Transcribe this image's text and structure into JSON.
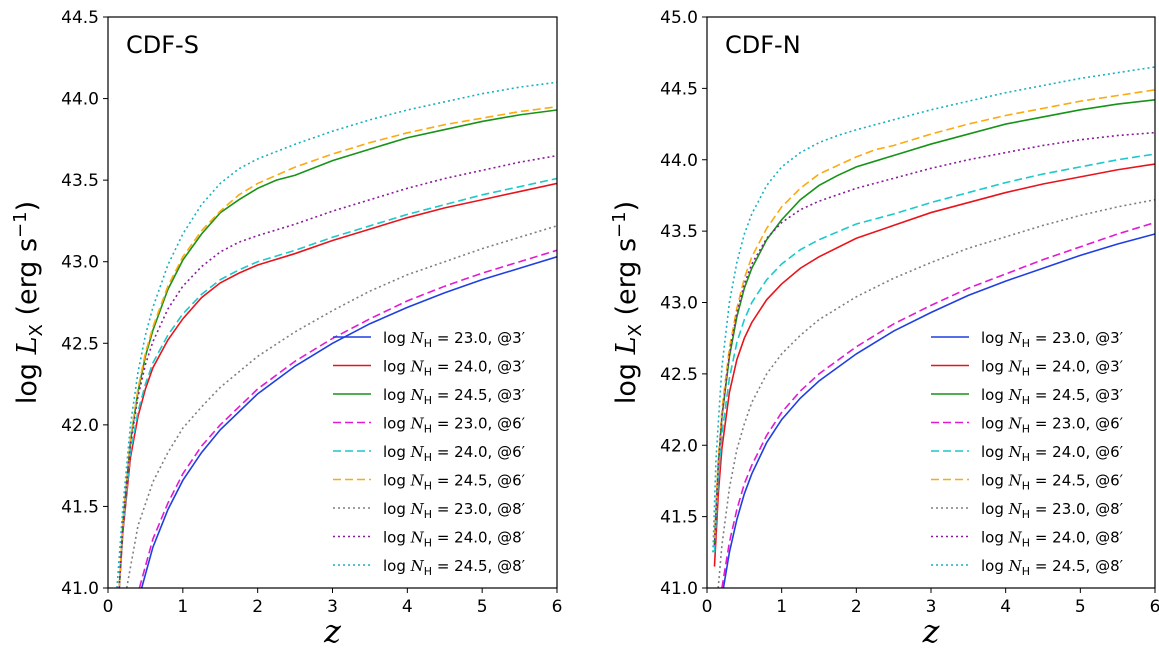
{
  "chart_data": [
    {
      "type": "line",
      "title": "CDF-S",
      "xlabel": "z",
      "ylabel": "log L_X (erg s^-1)",
      "xlim": [
        0,
        6
      ],
      "ylim": [
        41.0,
        44.5
      ],
      "xticks": [
        "0",
        "1",
        "2",
        "3",
        "4",
        "5",
        "6"
      ],
      "yticks": [
        "41.0",
        "41.5",
        "42.0",
        "42.5",
        "43.0",
        "43.5",
        "44.0",
        "44.5"
      ],
      "grid": false,
      "legend_position": "lower-right",
      "series": [
        {
          "name": "log N_H = 23.0, @3′",
          "color": "#1f3fe0",
          "style": "solid",
          "x": [
            0.45,
            0.6,
            0.8,
            1.0,
            1.25,
            1.5,
            2.0,
            2.5,
            3.0,
            3.5,
            4.0,
            4.5,
            5.0,
            5.5,
            6.0
          ],
          "y": [
            41.0,
            41.25,
            41.48,
            41.66,
            41.83,
            41.97,
            42.19,
            42.36,
            42.5,
            42.62,
            42.72,
            42.81,
            42.89,
            42.96,
            43.03
          ]
        },
        {
          "name": "log N_H = 24.0, @3′",
          "color": "#e8141c",
          "style": "solid",
          "x": [
            0.15,
            0.2,
            0.3,
            0.4,
            0.5,
            0.6,
            0.8,
            1.0,
            1.25,
            1.5,
            1.75,
            2.0,
            2.5,
            3.0,
            3.5,
            4.0,
            4.5,
            5.0,
            5.5,
            6.0
          ],
          "y": [
            41.0,
            41.35,
            41.8,
            42.05,
            42.22,
            42.35,
            42.52,
            42.65,
            42.78,
            42.87,
            42.93,
            42.98,
            43.05,
            43.13,
            43.2,
            43.27,
            43.33,
            43.38,
            43.43,
            43.48
          ]
        },
        {
          "name": "log N_H = 24.5, @3′",
          "color": "#179317",
          "style": "solid",
          "x": [
            0.15,
            0.2,
            0.3,
            0.4,
            0.5,
            0.6,
            0.8,
            1.0,
            1.25,
            1.5,
            1.75,
            2.0,
            2.25,
            2.5,
            3.0,
            3.5,
            4.0,
            4.5,
            5.0,
            5.5,
            6.0
          ],
          "y": [
            41.0,
            41.4,
            41.9,
            42.2,
            42.42,
            42.58,
            42.83,
            43.01,
            43.17,
            43.3,
            43.38,
            43.45,
            43.5,
            43.53,
            43.62,
            43.69,
            43.76,
            43.81,
            43.86,
            43.9,
            43.93
          ]
        },
        {
          "name": "log N_H = 23.0, @6′",
          "color": "#e21ad4",
          "style": "dashed",
          "x": [
            0.42,
            0.6,
            0.8,
            1.0,
            1.25,
            1.5,
            2.0,
            2.5,
            3.0,
            3.5,
            4.0,
            4.5,
            5.0,
            5.5,
            6.0
          ],
          "y": [
            41.0,
            41.3,
            41.52,
            41.7,
            41.87,
            42.0,
            42.22,
            42.39,
            42.53,
            42.65,
            42.76,
            42.85,
            42.93,
            43.0,
            43.07
          ]
        },
        {
          "name": "log N_H = 24.0, @6′",
          "color": "#1cc9cc",
          "style": "dashed",
          "x": [
            0.15,
            0.2,
            0.3,
            0.4,
            0.5,
            0.6,
            0.8,
            1.0,
            1.25,
            1.5,
            1.75,
            2.0,
            2.5,
            3.0,
            3.5,
            4.0,
            4.5,
            5.0,
            5.5,
            6.0
          ],
          "y": [
            41.0,
            41.37,
            41.83,
            42.08,
            42.25,
            42.38,
            42.55,
            42.68,
            42.8,
            42.89,
            42.95,
            43.0,
            43.07,
            43.15,
            43.22,
            43.29,
            43.35,
            43.41,
            43.46,
            43.51
          ]
        },
        {
          "name": "log N_H = 24.5, @6′",
          "color": "#fcaa0f",
          "style": "dashed",
          "x": [
            0.15,
            0.2,
            0.3,
            0.4,
            0.5,
            0.6,
            0.8,
            1.0,
            1.25,
            1.5,
            1.75,
            2.0,
            2.25,
            2.5,
            3.0,
            3.5,
            4.0,
            4.5,
            5.0,
            5.5,
            6.0
          ],
          "y": [
            41.0,
            41.42,
            41.92,
            42.22,
            42.44,
            42.6,
            42.85,
            43.03,
            43.19,
            43.31,
            43.41,
            43.48,
            43.53,
            43.58,
            43.66,
            43.73,
            43.79,
            43.84,
            43.88,
            43.92,
            43.95
          ]
        },
        {
          "name": "log N_H = 23.0, @8′",
          "color": "#7f7f7f",
          "style": "dotted",
          "x": [
            0.25,
            0.4,
            0.6,
            0.8,
            1.0,
            1.25,
            1.5,
            2.0,
            2.5,
            3.0,
            3.5,
            4.0,
            4.5,
            5.0,
            5.5,
            6.0
          ],
          "y": [
            41.0,
            41.38,
            41.65,
            41.83,
            41.98,
            42.11,
            42.23,
            42.42,
            42.57,
            42.7,
            42.82,
            42.92,
            43.0,
            43.08,
            43.15,
            43.22
          ]
        },
        {
          "name": "log N_H = 24.0, @8′",
          "color": "#8b1a9c",
          "style": "dotted",
          "x": [
            0.15,
            0.2,
            0.3,
            0.4,
            0.5,
            0.6,
            0.8,
            1.0,
            1.25,
            1.5,
            1.75,
            2.0,
            2.5,
            3.0,
            3.5,
            4.0,
            4.5,
            5.0,
            5.5,
            6.0
          ],
          "y": [
            41.0,
            41.4,
            41.88,
            42.17,
            42.37,
            42.51,
            42.71,
            42.85,
            42.97,
            43.06,
            43.12,
            43.16,
            43.23,
            43.31,
            43.38,
            43.45,
            43.51,
            43.56,
            43.61,
            43.65
          ]
        },
        {
          "name": "log N_H = 24.5, @8′",
          "color": "#17b1c1",
          "style": "dotted",
          "x": [
            0.12,
            0.2,
            0.3,
            0.4,
            0.5,
            0.6,
            0.8,
            1.0,
            1.25,
            1.5,
            1.75,
            2.0,
            2.5,
            3.0,
            3.5,
            4.0,
            4.5,
            5.0,
            5.5,
            6.0
          ],
          "y": [
            41.0,
            41.5,
            42.0,
            42.32,
            42.55,
            42.72,
            42.98,
            43.17,
            43.35,
            43.48,
            43.57,
            43.63,
            43.72,
            43.8,
            43.87,
            43.93,
            43.98,
            44.03,
            44.07,
            44.1
          ]
        }
      ]
    },
    {
      "type": "line",
      "title": "CDF-N",
      "xlabel": "z",
      "ylabel": "log L_X (erg s^-1)",
      "xlim": [
        0,
        6
      ],
      "ylim": [
        41.0,
        45.0
      ],
      "xticks": [
        "0",
        "1",
        "2",
        "3",
        "4",
        "5",
        "6"
      ],
      "yticks": [
        "41.0",
        "41.5",
        "42.0",
        "42.5",
        "43.0",
        "43.5",
        "44.0",
        "44.5",
        "45.0"
      ],
      "grid": false,
      "legend_position": "lower-right",
      "series": [
        {
          "name": "log N_H = 23.0, @3′",
          "color": "#1f3fe0",
          "style": "solid",
          "x": [
            0.22,
            0.3,
            0.4,
            0.5,
            0.6,
            0.8,
            1.0,
            1.25,
            1.5,
            2.0,
            2.5,
            3.0,
            3.5,
            4.0,
            4.5,
            5.0,
            5.5,
            6.0
          ],
          "y": [
            41.0,
            41.25,
            41.48,
            41.66,
            41.8,
            42.02,
            42.18,
            42.33,
            42.45,
            42.64,
            42.8,
            42.93,
            43.05,
            43.15,
            43.24,
            43.33,
            43.41,
            43.48
          ]
        },
        {
          "name": "log N_H = 24.0, @3′",
          "color": "#e8141c",
          "style": "solid",
          "x": [
            0.1,
            0.15,
            0.2,
            0.3,
            0.4,
            0.5,
            0.6,
            0.8,
            1.0,
            1.25,
            1.5,
            2.0,
            2.5,
            3.0,
            3.5,
            4.0,
            4.5,
            5.0,
            5.5,
            6.0
          ],
          "y": [
            41.15,
            41.65,
            41.98,
            42.37,
            42.6,
            42.75,
            42.86,
            43.02,
            43.13,
            43.24,
            43.32,
            43.45,
            43.54,
            43.63,
            43.7,
            43.77,
            43.83,
            43.88,
            43.93,
            43.97
          ]
        },
        {
          "name": "log N_H = 24.5, @3′",
          "color": "#179317",
          "style": "solid",
          "x": [
            0.1,
            0.15,
            0.2,
            0.3,
            0.4,
            0.5,
            0.6,
            0.8,
            1.0,
            1.25,
            1.5,
            1.75,
            2.0,
            2.25,
            2.5,
            3.0,
            3.5,
            4.0,
            4.5,
            5.0,
            5.5,
            6.0
          ],
          "y": [
            41.3,
            41.85,
            42.2,
            42.62,
            42.9,
            43.1,
            43.24,
            43.44,
            43.58,
            43.72,
            43.82,
            43.89,
            43.95,
            43.99,
            44.03,
            44.11,
            44.18,
            44.25,
            44.3,
            44.35,
            44.39,
            44.42
          ]
        },
        {
          "name": "log N_H = 23.0, @6′",
          "color": "#e21ad4",
          "style": "dashed",
          "x": [
            0.2,
            0.3,
            0.4,
            0.5,
            0.6,
            0.8,
            1.0,
            1.25,
            1.5,
            2.0,
            2.5,
            3.0,
            3.5,
            4.0,
            4.5,
            5.0,
            5.5,
            6.0
          ],
          "y": [
            41.0,
            41.32,
            41.55,
            41.73,
            41.86,
            42.07,
            42.23,
            42.38,
            42.5,
            42.69,
            42.85,
            42.98,
            43.1,
            43.2,
            43.3,
            43.39,
            43.48,
            43.56
          ]
        },
        {
          "name": "log N_H = 24.0, @6′",
          "color": "#1cc9cc",
          "style": "dashed",
          "x": [
            0.1,
            0.15,
            0.2,
            0.3,
            0.4,
            0.5,
            0.6,
            0.8,
            1.0,
            1.25,
            1.5,
            2.0,
            2.5,
            3.0,
            3.5,
            4.0,
            4.5,
            5.0,
            5.5,
            6.0
          ],
          "y": [
            41.25,
            41.75,
            42.08,
            42.47,
            42.72,
            42.88,
            43.0,
            43.16,
            43.27,
            43.37,
            43.44,
            43.55,
            43.62,
            43.7,
            43.77,
            43.84,
            43.9,
            43.95,
            44.0,
            44.04
          ]
        },
        {
          "name": "log N_H = 24.5, @6′",
          "color": "#fcaa0f",
          "style": "dashed",
          "x": [
            0.1,
            0.15,
            0.2,
            0.3,
            0.4,
            0.5,
            0.6,
            0.8,
            1.0,
            1.25,
            1.5,
            1.75,
            2.0,
            2.25,
            2.5,
            3.0,
            3.5,
            4.0,
            4.5,
            5.0,
            5.5,
            6.0
          ],
          "y": [
            41.35,
            41.9,
            42.25,
            42.68,
            42.96,
            43.17,
            43.32,
            43.52,
            43.67,
            43.8,
            43.9,
            43.96,
            44.02,
            44.07,
            44.1,
            44.18,
            44.25,
            44.31,
            44.36,
            44.41,
            44.45,
            44.49
          ]
        },
        {
          "name": "log N_H = 23.0, @8′",
          "color": "#7f7f7f",
          "style": "dotted",
          "x": [
            0.15,
            0.2,
            0.3,
            0.4,
            0.5,
            0.6,
            0.8,
            1.0,
            1.25,
            1.5,
            2.0,
            2.5,
            3.0,
            3.5,
            4.0,
            4.5,
            5.0,
            5.5,
            6.0
          ],
          "y": [
            41.0,
            41.3,
            41.7,
            41.97,
            42.15,
            42.3,
            42.5,
            42.64,
            42.77,
            42.88,
            43.04,
            43.17,
            43.28,
            43.38,
            43.46,
            43.54,
            43.61,
            43.67,
            43.72
          ]
        },
        {
          "name": "log N_H = 24.0, @8′",
          "color": "#8b1a9c",
          "style": "dotted",
          "x": [
            0.1,
            0.15,
            0.2,
            0.3,
            0.4,
            0.5,
            0.6,
            0.8,
            1.0,
            1.25,
            1.5,
            2.0,
            2.5,
            3.0,
            3.5,
            4.0,
            4.5,
            5.0,
            5.5,
            6.0
          ],
          "y": [
            41.3,
            41.85,
            42.2,
            42.64,
            42.93,
            43.13,
            43.27,
            43.45,
            43.56,
            43.65,
            43.71,
            43.8,
            43.87,
            43.94,
            44.0,
            44.05,
            44.1,
            44.14,
            44.17,
            44.19
          ]
        },
        {
          "name": "log N_H = 24.5, @8′",
          "color": "#17b1c1",
          "style": "dotted",
          "x": [
            0.08,
            0.12,
            0.2,
            0.3,
            0.4,
            0.5,
            0.6,
            0.8,
            1.0,
            1.25,
            1.5,
            1.75,
            2.0,
            2.5,
            3.0,
            3.5,
            4.0,
            4.5,
            5.0,
            5.5,
            6.0
          ],
          "y": [
            41.25,
            41.9,
            42.55,
            43.0,
            43.28,
            43.48,
            43.62,
            43.82,
            43.95,
            44.05,
            44.12,
            44.17,
            44.21,
            44.28,
            44.35,
            44.41,
            44.47,
            44.52,
            44.57,
            44.61,
            44.65
          ]
        }
      ]
    }
  ]
}
